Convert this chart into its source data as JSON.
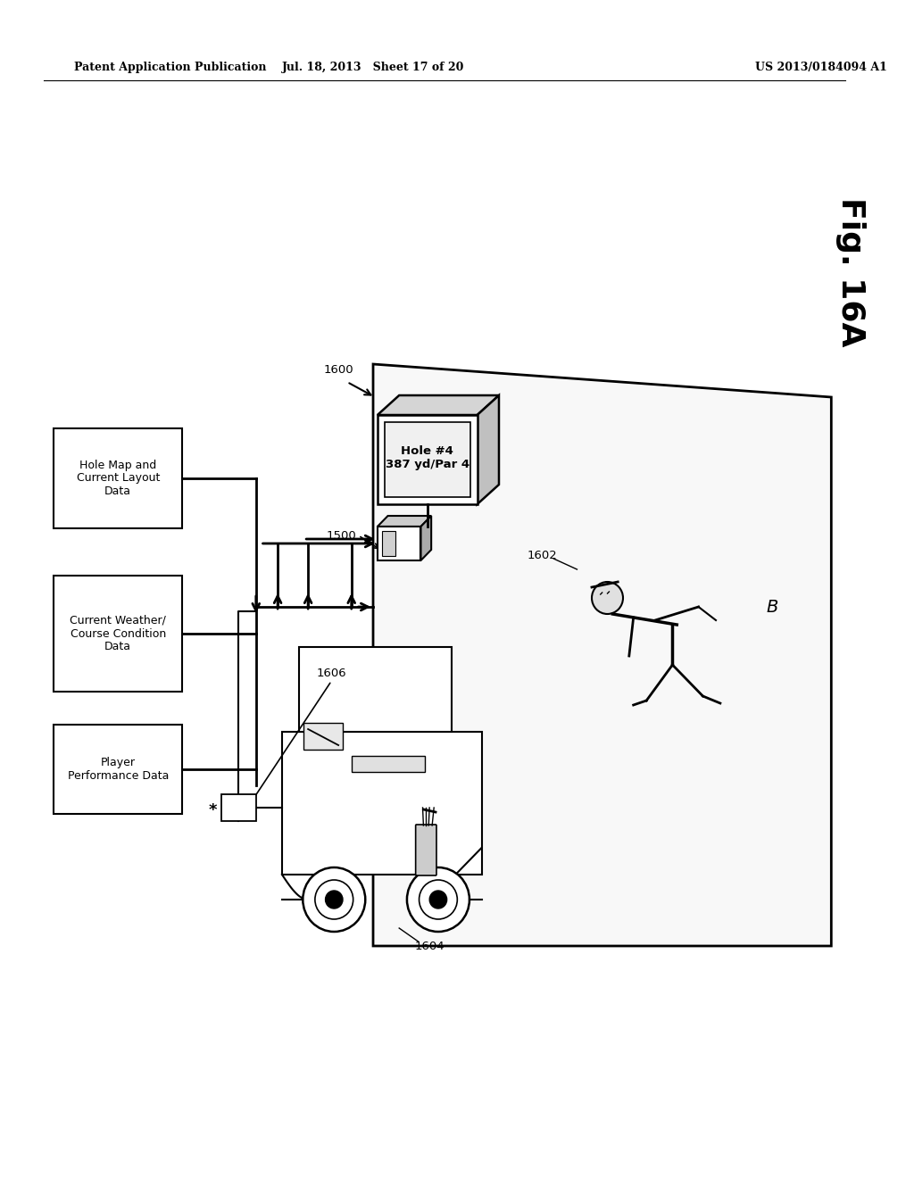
{
  "header_left": "Patent Application Publication",
  "header_mid": "Jul. 18, 2013   Sheet 17 of 20",
  "header_right": "US 2013/0184094 A1",
  "fig_label": "Fig. 16A",
  "bg_color": "#ffffff",
  "box1_label": "Hole Map and\nCurrent Layout\nData",
  "box2_label": "Current Weather/\nCourse Condition\nData",
  "box3_label": "Player\nPerformance Data",
  "label_1600": "1600",
  "label_1500": "1500",
  "label_1602": "1602",
  "label_1604": "1604",
  "label_1606": "1606",
  "display_line1": "Hole #4",
  "display_line2": "387 yd/Par 4",
  "label_B": "B"
}
